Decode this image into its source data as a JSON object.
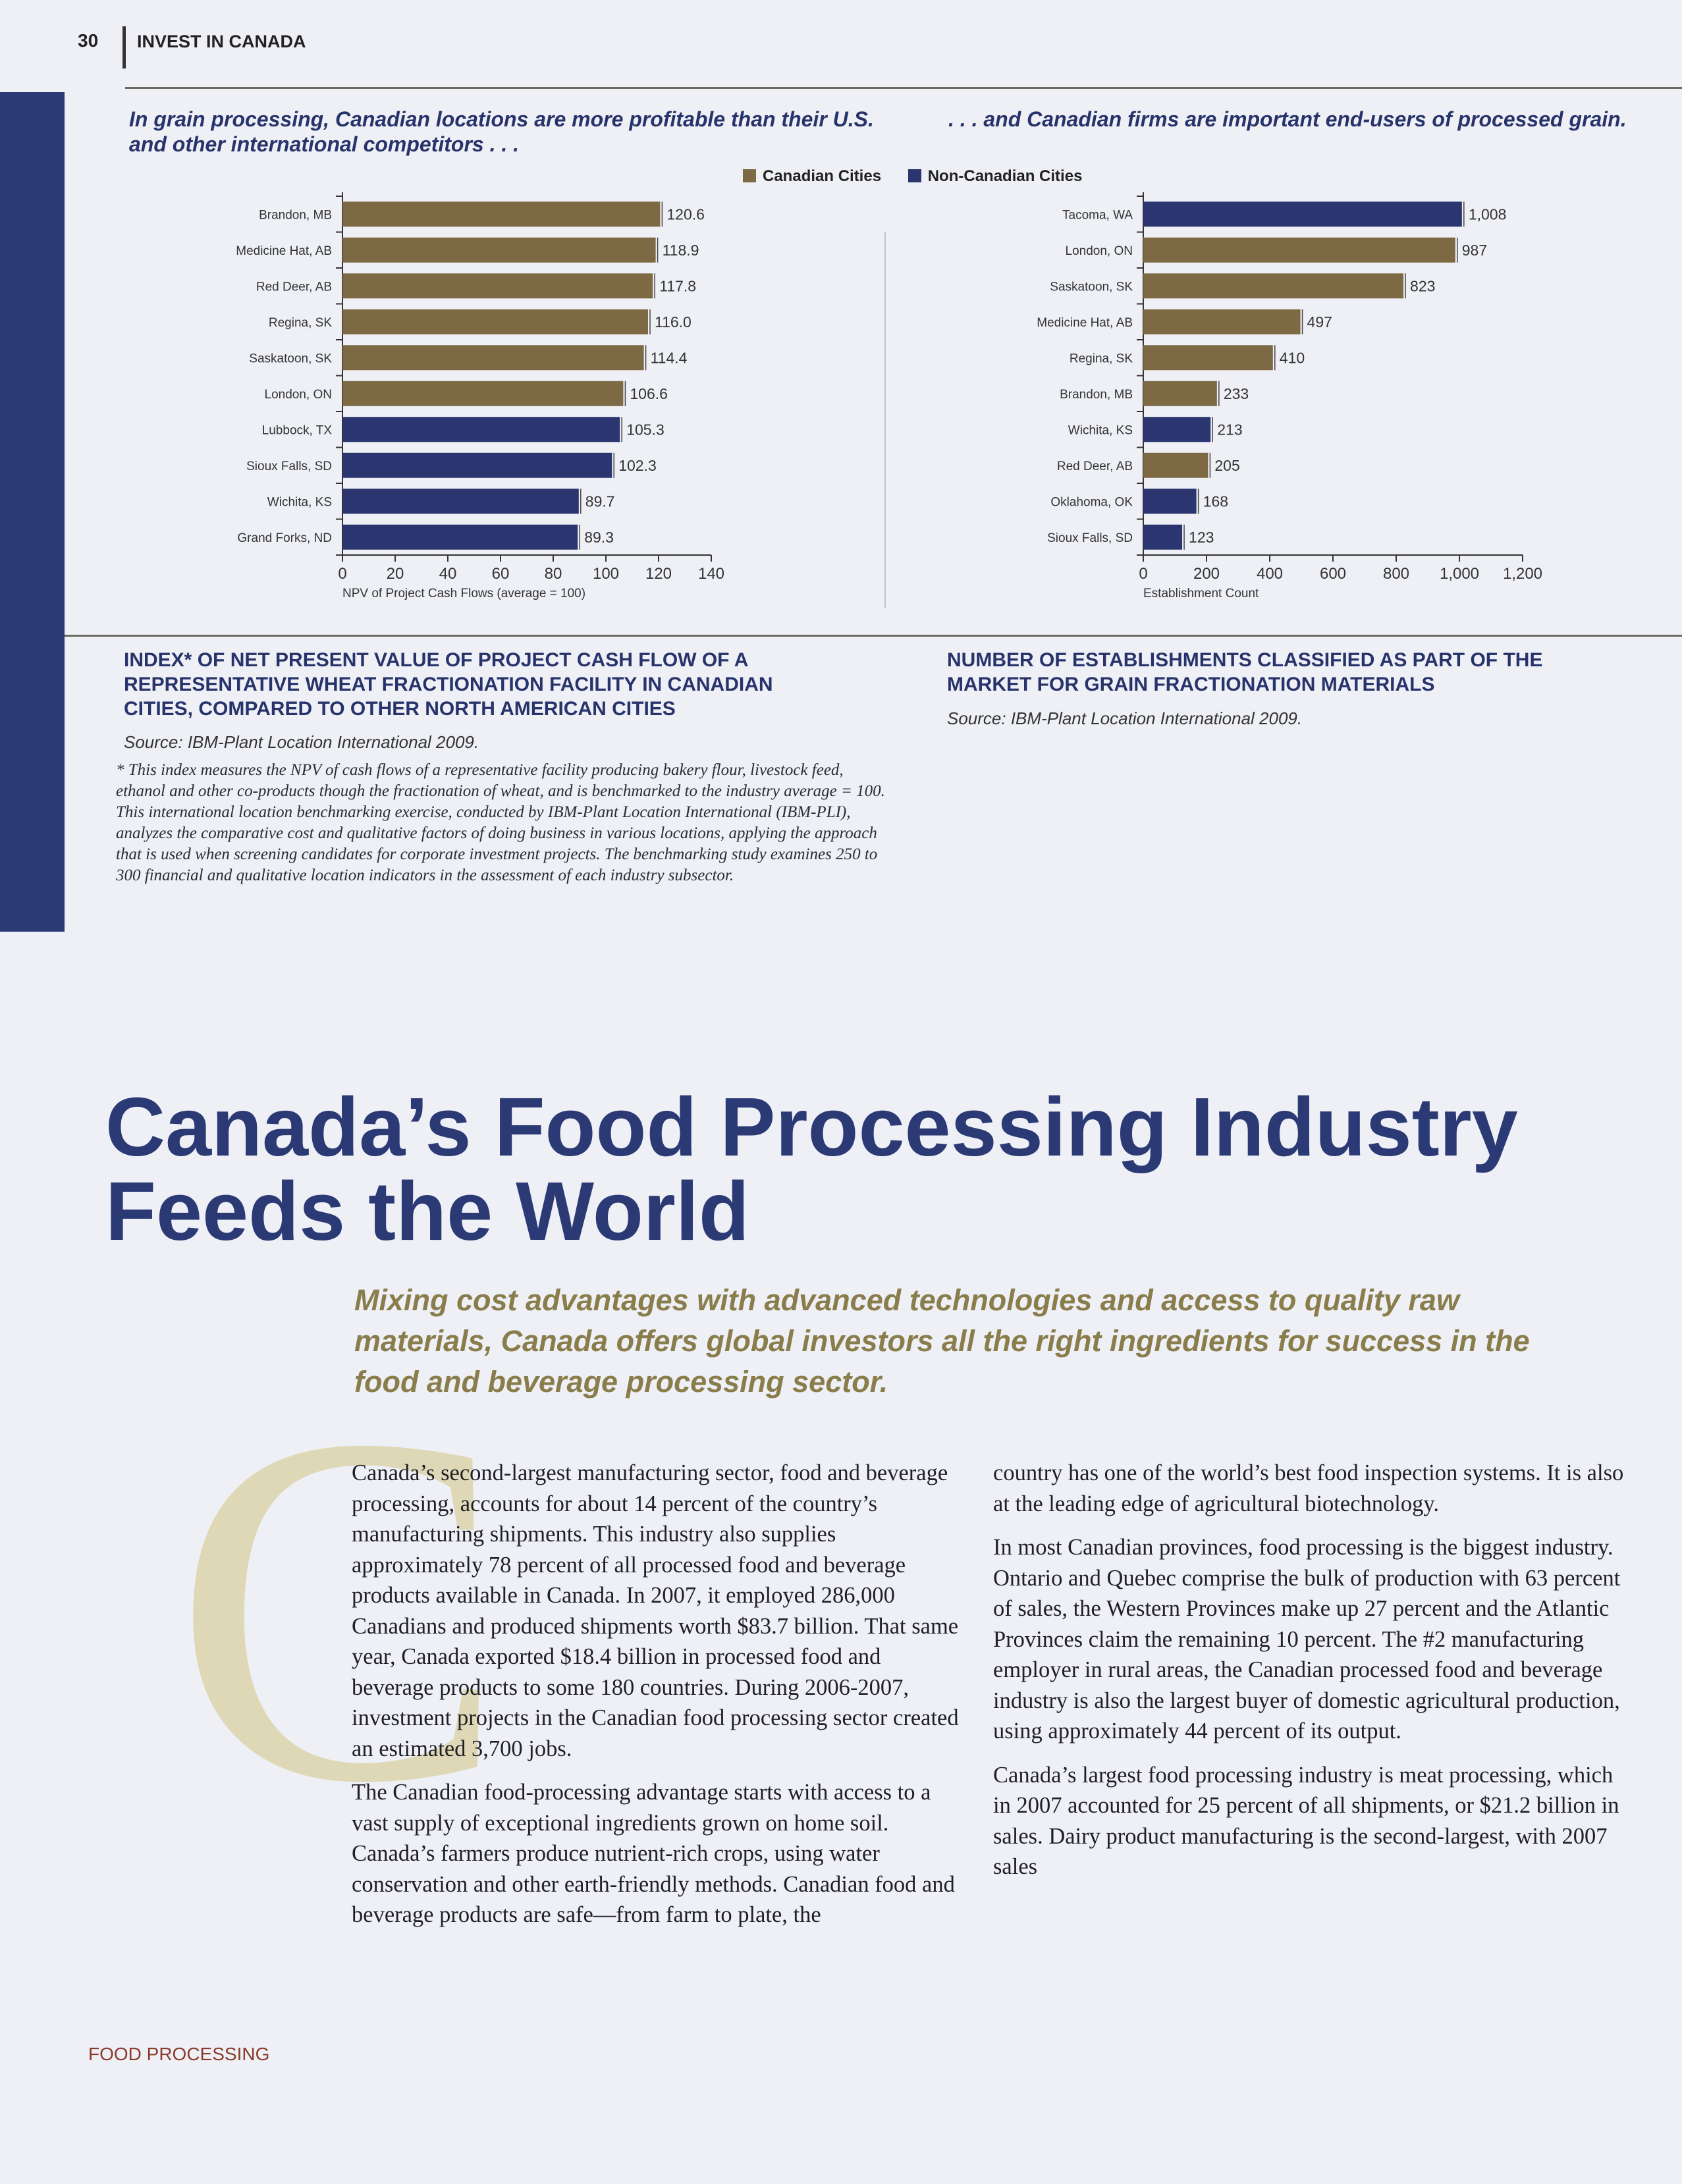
{
  "header": {
    "page_number": "30",
    "section": "INVEST IN CANADA"
  },
  "left_chart": {
    "caption": "In grain processing, Canadian locations are more profitable than their U.S. and other international competitors . . .",
    "heading_lines": [
      "INDEX* OF NET PRESENT VALUE OF PROJECT CASH FLOW OF A",
      "REPRESENTATIVE WHEAT FRACTIONATION FACILITY IN CANADIAN",
      "CITIES, COMPARED TO OTHER NORTH AMERICAN CITIES"
    ],
    "source": "Source: IBM-Plant Location International 2009.",
    "footnote": "* This index measures the NPV of cash flows of a representative facility producing bakery flour, livestock feed, ethanol and other co-products though the fractionation of wheat, and is benchmarked to the industry average = 100. This international location benchmarking exercise, conducted by IBM-Plant Location International (IBM-PLI), analyzes the comparative cost and qualitative factors of doing business in various locations, applying the approach that is used when screening candidates for corporate investment projects. The benchmarking study examines 250 to 300 financial and qualitative location indicators in the assessment of each industry subsector."
  },
  "right_chart": {
    "caption": ". . . and Canadian firms are important end-users of processed grain.",
    "heading_lines": [
      "NUMBER OF ESTABLISHMENTS CLASSIFIED AS PART OF THE",
      "MARKET FOR GRAIN FRACTIONATION MATERIALS"
    ],
    "source": "Source: IBM-Plant Location International 2009."
  },
  "legend": [
    {
      "label": "Canadian Cities",
      "color": "#7d6a45"
    },
    {
      "label": "Non-Canadian Cities",
      "color": "#2b3570"
    }
  ],
  "chart_data": [
    {
      "type": "bar",
      "orientation": "horizontal",
      "categories": [
        "Brandon, MB",
        "Medicine Hat, AB",
        "Red Deer, AB",
        "Regina, SK",
        "Saskatoon, SK",
        "London, ON",
        "Lubbock, TX",
        "Sioux Falls, SD",
        "Wichita, KS",
        "Grand Forks, ND"
      ],
      "values": [
        120.6,
        118.9,
        117.8,
        116.0,
        114.4,
        106.6,
        105.3,
        102.3,
        89.7,
        89.3
      ],
      "value_labels": [
        "120.6",
        "118.9",
        "117.8",
        "116.0",
        "114.4",
        "106.6",
        "105.3",
        "102.3",
        "89.7",
        "89.3"
      ],
      "groups": [
        "canadian",
        "canadian",
        "canadian",
        "canadian",
        "canadian",
        "canadian",
        "non-canadian",
        "non-canadian",
        "non-canadian",
        "non-canadian"
      ],
      "xlabel": "NPV of Project Cash Flows (average = 100)",
      "xlim": [
        0,
        140
      ],
      "xticks": [
        0,
        20,
        40,
        60,
        80,
        100,
        120,
        140
      ],
      "xtick_labels": [
        "0",
        "20",
        "40",
        "60",
        "80",
        "100",
        "120",
        "140"
      ],
      "grid": false
    },
    {
      "type": "bar",
      "orientation": "horizontal",
      "categories": [
        "Tacoma, WA",
        "London, ON",
        "Saskatoon, SK",
        "Medicine Hat, AB",
        "Regina, SK",
        "Brandon, MB",
        "Wichita, KS",
        "Red Deer, AB",
        "Oklahoma, OK",
        "Sioux Falls, SD"
      ],
      "values": [
        1008,
        987,
        823,
        497,
        410,
        233,
        213,
        205,
        168,
        123
      ],
      "value_labels": [
        "1,008",
        "987",
        "823",
        "497",
        "410",
        "233",
        "213",
        "205",
        "168",
        "123"
      ],
      "groups": [
        "non-canadian",
        "canadian",
        "canadian",
        "canadian",
        "canadian",
        "canadian",
        "non-canadian",
        "canadian",
        "non-canadian",
        "non-canadian"
      ],
      "xlabel": "Establishment Count",
      "xlim": [
        0,
        1200
      ],
      "xticks": [
        0,
        200,
        400,
        600,
        800,
        1000,
        1200
      ],
      "xtick_labels": [
        "0",
        "200",
        "400",
        "600",
        "800",
        "1,000",
        "1,200"
      ],
      "grid": false
    }
  ],
  "article": {
    "title_lines": [
      "Canada’s Food Processing Industry",
      "Feeds the World"
    ],
    "subtitle": "Mixing cost advantages with advanced technologies and access to quality raw materials, Canada offers global investors all the right ingredients for success in the food and beverage processing sector.",
    "drop_cap": "C",
    "column1": [
      "Canada’s second-largest manufacturing sector, food and beverage processing, accounts for about 14 percent of the country’s manufacturing shipments. This industry also supplies approximately 78 percent of all processed food and beverage products available in Canada. In 2007, it employed 286,000 Canadians and produced shipments worth $83.7 billion. That same year, Canada exported $18.4 billion in processed food and beverage products to some 180 countries. During 2006-2007, investment projects in the Canadian food processing sector created an estimated 3,700 jobs.",
      "The Canadian food-processing advantage starts with access to a vast supply of exceptional ingredients grown on home soil. Canada’s farmers produce nutrient-rich crops, using water conservation and other earth-friendly methods. Canadian food and beverage products are safe—from farm to plate, the"
    ],
    "column2": [
      "country has one of the world’s best food inspection systems. It is also at the leading edge of agricultural biotechnology.",
      "In most Canadian provinces, food processing is the biggest industry. Ontario and Quebec comprise the bulk of production with 63 percent of sales, the Western Provinces make up 27 percent and the Atlantic Provinces claim the remaining 10 percent. The #2 manufacturing employer in rural areas, the Canadian processed food and beverage industry is also the largest buyer of domestic agricultural production, using approximately 44 percent of its output.",
      "Canada’s largest food processing industry is meat processing, which in 2007 accounted for 25 percent of all shipments, or $21.2 billion in sales. Dairy product manufacturing is the second-largest, with 2007 sales"
    ]
  },
  "footer": {
    "label": "FOOD PROCESSING"
  }
}
